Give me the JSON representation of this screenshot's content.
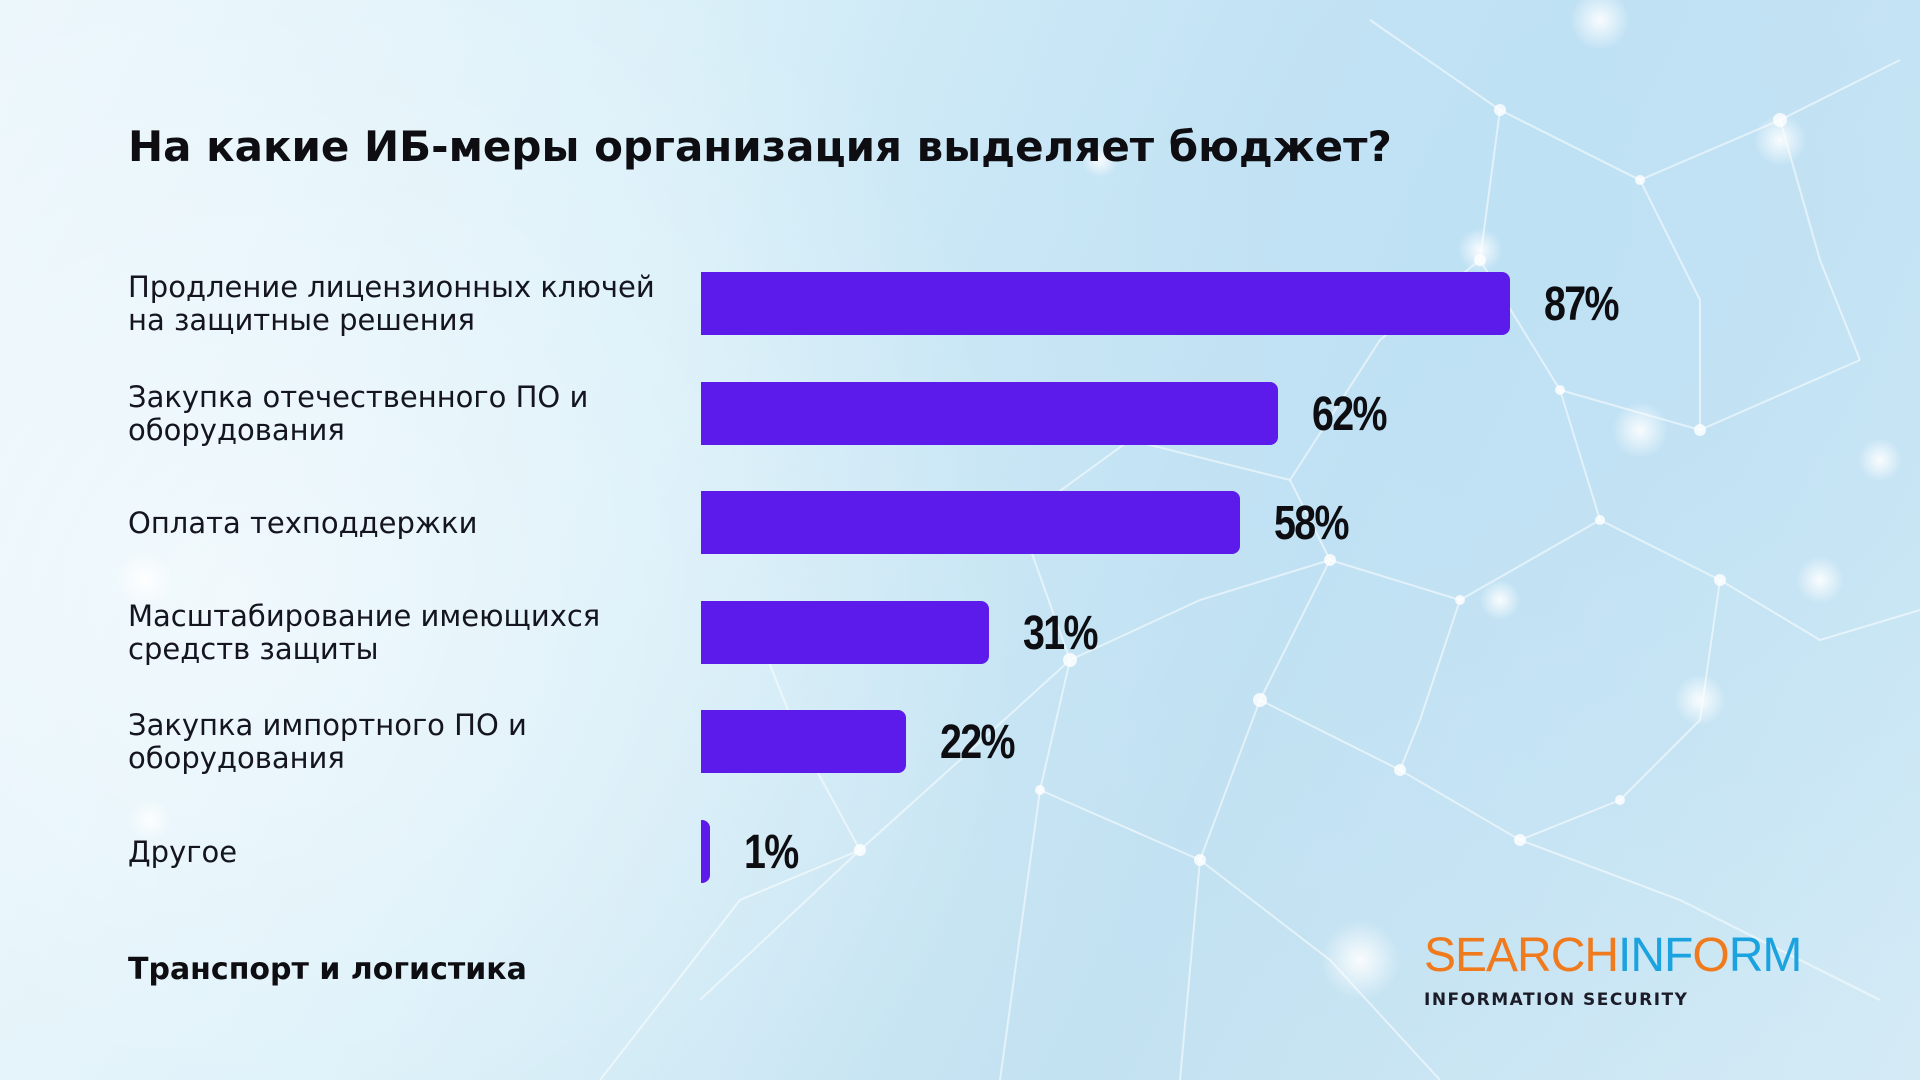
{
  "chart_data": {
    "type": "bar",
    "orientation": "horizontal",
    "title": "На какие ИБ-меры организация выделяет бюджет?",
    "categories": [
      "Продление лицензионных ключей\nна защитные решения",
      "Закупка отечественного ПО и\nоборудования",
      "Оплата техподдержки",
      "Масштабирование имеющихся\nсредств защиты",
      "Закупка импортного ПО и\nоборудования",
      "Другое"
    ],
    "values": [
      87,
      62,
      58,
      31,
      22,
      1
    ],
    "value_labels": [
      "87%",
      "62%",
      "58%",
      "31%",
      "22%",
      "1%"
    ],
    "xlim": [
      0,
      100
    ],
    "bar_color": "#5c1aeb",
    "grid": false
  },
  "footer": {
    "segment": "Транспорт и логистика"
  },
  "logo": {
    "part1": "SEARCH",
    "part2": "INF",
    "part3": "O",
    "part4": "RM",
    "tagline": "INFORMATION SECURITY",
    "orange": "#f07a1e",
    "blue": "#1ba3e0"
  }
}
